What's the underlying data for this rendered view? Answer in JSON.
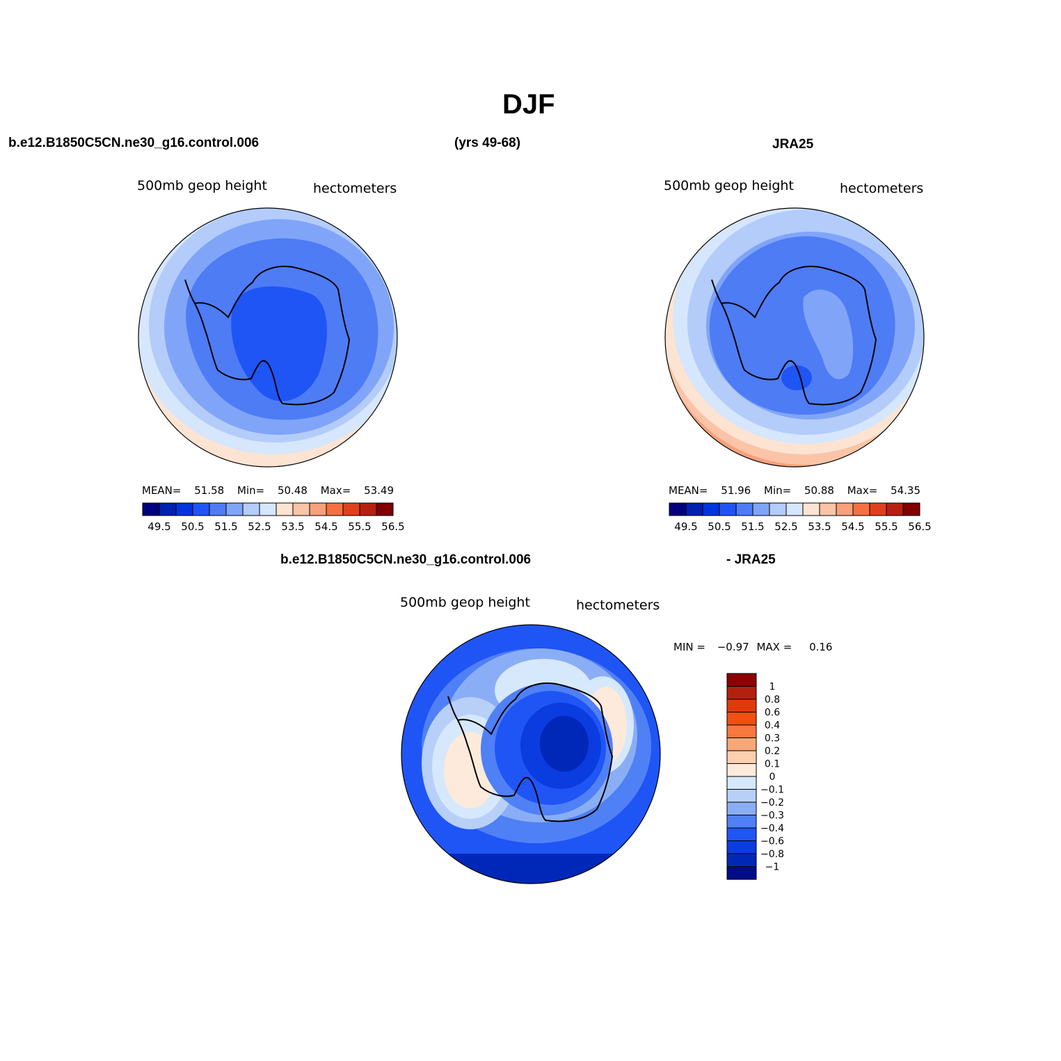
{
  "title": "DJF",
  "header": {
    "case_name": "b.e12.B1850C5CN.ne30_g16.control.006",
    "years": "(yrs 49-68)",
    "obs_name": "JRA25"
  },
  "diff_header": {
    "case_name": "b.e12.B1850C5CN.ne30_g16.control.006",
    "obs_name": "- JRA25"
  },
  "panels": {
    "model": {
      "variable": "500mb geop height",
      "units": "hectometers",
      "mean_label": "MEAN=",
      "mean": "51.58",
      "min_label": "Min=",
      "min": "50.48",
      "max_label": "Max=",
      "max": "53.49"
    },
    "obs": {
      "variable": "500mb geop height",
      "units": "hectometers",
      "mean_label": "MEAN=",
      "mean": "51.96",
      "min_label": "Min=",
      "min": "50.88",
      "max_label": "Max=",
      "max": "54.35"
    },
    "diff": {
      "variable": "500mb geop height",
      "units": "hectometers",
      "min_label": "MIN =",
      "min": "−0.97",
      "max_label": "MAX =",
      "max": "0.16"
    }
  },
  "colorbar_main": {
    "colors": [
      "#000080",
      "#0020b0",
      "#0035dd",
      "#1f55f5",
      "#4d7cf5",
      "#80a5f8",
      "#b3ccfa",
      "#d6e6fc",
      "#fde4d2",
      "#fbc4a6",
      "#f8a07a",
      "#f57040",
      "#e0401a",
      "#b82010",
      "#800000"
    ],
    "labels": [
      "49.5",
      "50.5",
      "51.5",
      "52.5",
      "53.5",
      "54.5",
      "55.5",
      "56.5"
    ]
  },
  "colorbar_diff": {
    "colors_top_to_bottom": [
      "#8b0000",
      "#b22010",
      "#e03a0a",
      "#f05010",
      "#f87840",
      "#f8a878",
      "#fad0b0",
      "#fdeadb",
      "#d6e8fc",
      "#b8d0f8",
      "#8aaef5",
      "#5080f5",
      "#1f55f5",
      "#0a3ce0",
      "#0028b8",
      "#000c88"
    ],
    "labels": [
      "1",
      "0.8",
      "0.6",
      "0.4",
      "0.3",
      "0.2",
      "0.1",
      "0",
      "−0.1",
      "−0.2",
      "−0.3",
      "−0.4",
      "−0.6",
      "−0.8",
      "−1"
    ]
  },
  "map_colors": {
    "model_levels": [
      "#fde4d2",
      "#d6e6fc",
      "#b3ccfa",
      "#80a5f8",
      "#4d7cf5",
      "#1f55f5"
    ],
    "obs_levels": [
      "#f8a07a",
      "#fbc4a6",
      "#fde4d2",
      "#d6e6fc",
      "#b3ccfa",
      "#80a5f8",
      "#4d7cf5",
      "#1f55f5"
    ],
    "diff_levels": [
      "#1f55f5",
      "#5080f5",
      "#8aaef5",
      "#b8d0f8",
      "#d6e8fc",
      "#fdeadb",
      "#0a3ce0",
      "#0028b8",
      "#000c88"
    ]
  }
}
